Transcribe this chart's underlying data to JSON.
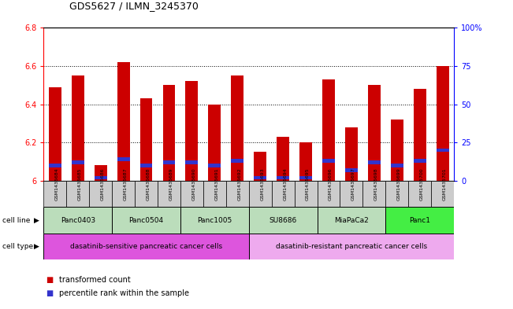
{
  "title": "GDS5627 / ILMN_3245370",
  "samples": [
    "GSM1435684",
    "GSM1435685",
    "GSM1435686",
    "GSM1435687",
    "GSM1435688",
    "GSM1435689",
    "GSM1435690",
    "GSM1435691",
    "GSM1435692",
    "GSM1435693",
    "GSM1435694",
    "GSM1435695",
    "GSM1435696",
    "GSM1435697",
    "GSM1435698",
    "GSM1435699",
    "GSM1435700",
    "GSM1435701"
  ],
  "transformed_count": [
    6.49,
    6.55,
    6.08,
    6.62,
    6.43,
    6.5,
    6.52,
    6.4,
    6.55,
    6.15,
    6.23,
    6.2,
    6.53,
    6.28,
    6.5,
    6.32,
    6.48,
    6.6
  ],
  "percentile_rank_pct": [
    10,
    12,
    2,
    14,
    10,
    12,
    12,
    10,
    13,
    2,
    2,
    2,
    13,
    7,
    12,
    10,
    13,
    20
  ],
  "ylim_left": [
    6.0,
    6.8
  ],
  "ylim_right": [
    0,
    100
  ],
  "right_ticks": [
    0,
    25,
    50,
    75,
    100
  ],
  "right_tick_labels": [
    "0",
    "25",
    "50",
    "75",
    "100%"
  ],
  "left_ticks": [
    6.0,
    6.2,
    6.4,
    6.6,
    6.8
  ],
  "left_tick_labels": [
    "6",
    "6.2",
    "6.4",
    "6.6",
    "6.8"
  ],
  "bar_color": "#cc0000",
  "percentile_color": "#3333cc",
  "cell_lines": [
    {
      "label": "Panc0403",
      "start": 0,
      "end": 3,
      "color": "#bbddbb"
    },
    {
      "label": "Panc0504",
      "start": 3,
      "end": 6,
      "color": "#bbddbb"
    },
    {
      "label": "Panc1005",
      "start": 6,
      "end": 9,
      "color": "#bbddbb"
    },
    {
      "label": "SU8686",
      "start": 9,
      "end": 12,
      "color": "#bbddbb"
    },
    {
      "label": "MiaPaCa2",
      "start": 12,
      "end": 15,
      "color": "#bbddbb"
    },
    {
      "label": "Panc1",
      "start": 15,
      "end": 18,
      "color": "#44ee44"
    }
  ],
  "cell_types": [
    {
      "label": "dasatinib-sensitive pancreatic cancer cells",
      "start": 0,
      "end": 9,
      "color": "#dd55dd"
    },
    {
      "label": "dasatinib-resistant pancreatic cancer cells",
      "start": 9,
      "end": 18,
      "color": "#eeaaee"
    }
  ],
  "sample_bg_color": "#cccccc",
  "bar_width": 0.55
}
